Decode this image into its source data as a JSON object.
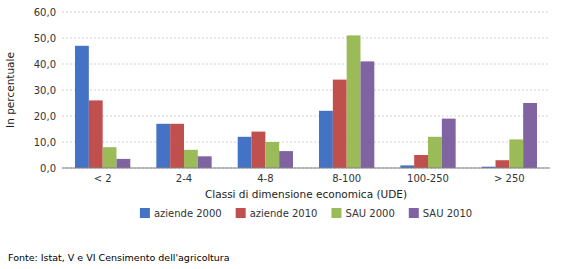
{
  "chart_data": {
    "type": "bar",
    "categories": [
      "< 2",
      "2-4",
      "4-8",
      "8-100",
      "100-250",
      "> 250"
    ],
    "series": [
      {
        "name": "aziende 2000",
        "color": "#4472C4",
        "values": [
          47.0,
          17.0,
          12.0,
          22.0,
          1.0,
          0.5
        ]
      },
      {
        "name": "aziende 2010",
        "color": "#C0504D",
        "values": [
          26.0,
          17.0,
          14.0,
          34.0,
          5.0,
          3.0
        ]
      },
      {
        "name": "SAU 2000",
        "color": "#9BBB59",
        "values": [
          8.0,
          7.0,
          10.0,
          51.0,
          12.0,
          11.0
        ]
      },
      {
        "name": "SAU 2010",
        "color": "#8064A2",
        "values": [
          3.5,
          4.5,
          6.5,
          41.0,
          19.0,
          25.0
        ]
      }
    ],
    "xlabel": "Classi di dimensione economica (UDE)",
    "ylabel": "In percentuale",
    "ylim": [
      0,
      60
    ],
    "yticks": [
      {
        "value": 0,
        "label": "0,0"
      },
      {
        "value": 10,
        "label": "10,0"
      },
      {
        "value": 20,
        "label": "20,0"
      },
      {
        "value": 30,
        "label": "30,0"
      },
      {
        "value": 40,
        "label": "40,0"
      },
      {
        "value": 50,
        "label": "50,0"
      },
      {
        "value": 60,
        "label": "60,0"
      }
    ],
    "grid": true,
    "legend": "bottom",
    "annotations": [
      "Fonte: Istat, V e VI Censimento dell'agricoltura"
    ]
  }
}
